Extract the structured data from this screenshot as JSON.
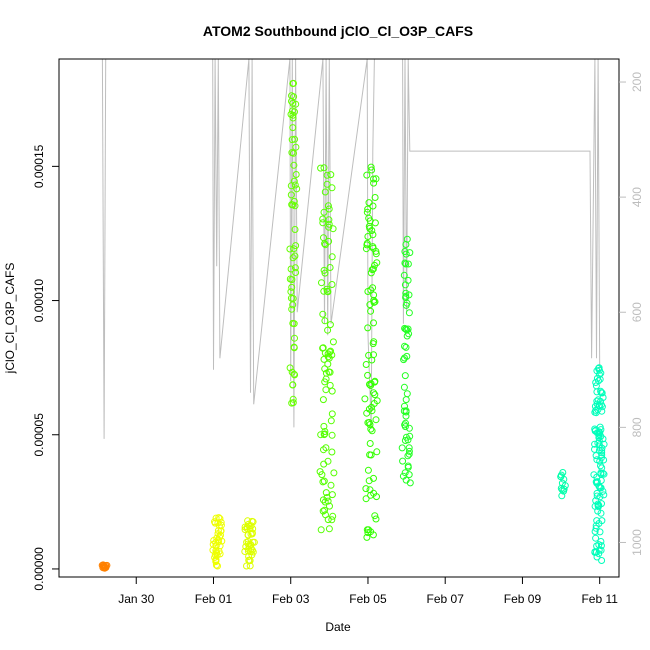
{
  "chart_data": {
    "type": "scatter",
    "title": "ATOM2 Southbound jClO_Cl_O3P_CAFS",
    "xlabel": "Date",
    "ylabel": "jClO_Cl_O3P_CAFS",
    "x_range": [
      "2016-01-28T00:00",
      "2016-02-11T12:00"
    ],
    "ylim": [
      -3e-06,
      0.00019
    ],
    "y2lim": [
      1060,
      160
    ],
    "x_ticks": [
      {
        "label": "Jan 30",
        "value": "2016-01-30"
      },
      {
        "label": "Feb 01",
        "value": "2016-02-01"
      },
      {
        "label": "Feb 03",
        "value": "2016-02-03"
      },
      {
        "label": "Feb 05",
        "value": "2016-02-05"
      },
      {
        "label": "Feb 07",
        "value": "2016-02-07"
      },
      {
        "label": "Feb 09",
        "value": "2016-02-09"
      },
      {
        "label": "Feb 11",
        "value": "2016-02-11"
      }
    ],
    "y_ticks": [
      {
        "label": "0.00000",
        "value": 0
      },
      {
        "label": "0.00005",
        "value": 5e-05
      },
      {
        "label": "0.00010",
        "value": 0.0001
      },
      {
        "label": "0.00015",
        "value": 0.00015
      }
    ],
    "y2_ticks": [
      {
        "label": "200",
        "value": 200
      },
      {
        "label": "400",
        "value": 400
      },
      {
        "label": "600",
        "value": 600
      },
      {
        "label": "800",
        "value": 800
      },
      {
        "label": "1000",
        "value": 1000
      }
    ],
    "grid": false,
    "pressure_line_color": "#bebebe",
    "clusters": [
      {
        "start": "2016-01-29T03:00",
        "end": "2016-01-29T05:00",
        "ymin": 0.0,
        "ymax": 1.5e-06,
        "color": "#ff8000",
        "n": 14
      },
      {
        "start": "2016-02-01T00:00",
        "end": "2016-02-01T05:00",
        "ymin": 1e-06,
        "ymax": 2e-05,
        "color": "#eeff00",
        "n": 40
      },
      {
        "start": "2016-02-01T20:00",
        "end": "2016-02-02T01:00",
        "ymin": 1e-06,
        "ymax": 1.8e-05,
        "color": "#ddff00",
        "n": 40
      },
      {
        "start": "2016-02-03T00:00",
        "end": "2016-02-03T03:00",
        "ymin": 5.8e-05,
        "ymax": 0.000182,
        "color": "#66ff00",
        "n": 60
      },
      {
        "start": "2016-02-03T19:00",
        "end": "2016-02-04T02:00",
        "ymin": 1.4e-05,
        "ymax": 0.000152,
        "color": "#55ff00",
        "n": 90
      },
      {
        "start": "2016-02-04T23:00",
        "end": "2016-02-05T05:00",
        "ymin": 1.1e-05,
        "ymax": 0.00015,
        "color": "#33ff00",
        "n": 90
      },
      {
        "start": "2016-02-05T22:00",
        "end": "2016-02-06T02:00",
        "ymin": 3.2e-05,
        "ymax": 0.000129,
        "color": "#22ff22",
        "n": 60
      },
      {
        "start": "2016-02-10T00:00",
        "end": "2016-02-10T02:00",
        "ymin": 2.7e-05,
        "ymax": 3.7e-05,
        "color": "#00ffaa",
        "n": 12
      },
      {
        "start": "2016-02-10T21:00",
        "end": "2016-02-11T02:00",
        "ymin": 3e-06,
        "ymax": 7.7e-05,
        "color": "#00ffbb",
        "n": 110
      }
    ],
    "pressure_trace": [
      [
        "2016-01-29T03:00",
        160
      ],
      [
        "2016-01-29T04:00",
        820
      ],
      [
        "2016-01-29T05:00",
        160
      ],
      [
        "2016-01-31T23:30",
        160
      ],
      [
        "2016-02-01T00:00",
        700
      ],
      [
        "2016-02-01T01:00",
        160
      ],
      [
        "2016-02-01T02:00",
        520
      ],
      [
        "2016-02-01T03:00",
        160
      ],
      [
        "2016-02-01T04:00",
        680
      ],
      [
        "2016-02-01T22:00",
        160
      ],
      [
        "2016-02-01T23:00",
        740
      ],
      [
        "2016-02-02T00:00",
        160
      ],
      [
        "2016-02-02T01:00",
        760
      ],
      [
        "2016-02-02T23:30",
        160
      ],
      [
        "2016-02-03T00:00",
        720
      ],
      [
        "2016-02-03T01:00",
        160
      ],
      [
        "2016-02-03T02:00",
        800
      ],
      [
        "2016-02-03T03:00",
        160
      ],
      [
        "2016-02-03T04:00",
        600
      ],
      [
        "2016-02-03T20:00",
        160
      ],
      [
        "2016-02-03T21:00",
        620
      ],
      [
        "2016-02-03T22:00",
        160
      ],
      [
        "2016-02-03T23:00",
        640
      ],
      [
        "2016-02-04T00:00",
        160
      ],
      [
        "2016-02-04T01:00",
        620
      ],
      [
        "2016-02-04T23:30",
        160
      ],
      [
        "2016-02-05T00:00",
        640
      ],
      [
        "2016-02-05T02:00",
        800
      ],
      [
        "2016-02-05T03:00",
        320
      ],
      [
        "2016-02-05T04:00",
        160
      ],
      [
        "2016-02-05T21:30",
        160
      ],
      [
        "2016-02-05T22:00",
        620
      ],
      [
        "2016-02-05T23:00",
        160
      ],
      [
        "2016-02-06T00:00",
        600
      ],
      [
        "2016-02-06T01:00",
        160
      ],
      [
        "2016-02-06T02:00",
        320
      ],
      [
        "2016-02-10T18:00",
        320
      ],
      [
        "2016-02-10T19:00",
        680
      ],
      [
        "2016-02-10T21:00",
        160
      ],
      [
        "2016-02-10T22:00",
        680
      ],
      [
        "2016-02-10T23:00",
        160
      ],
      [
        "2016-02-11T00:00",
        700
      ]
    ]
  }
}
